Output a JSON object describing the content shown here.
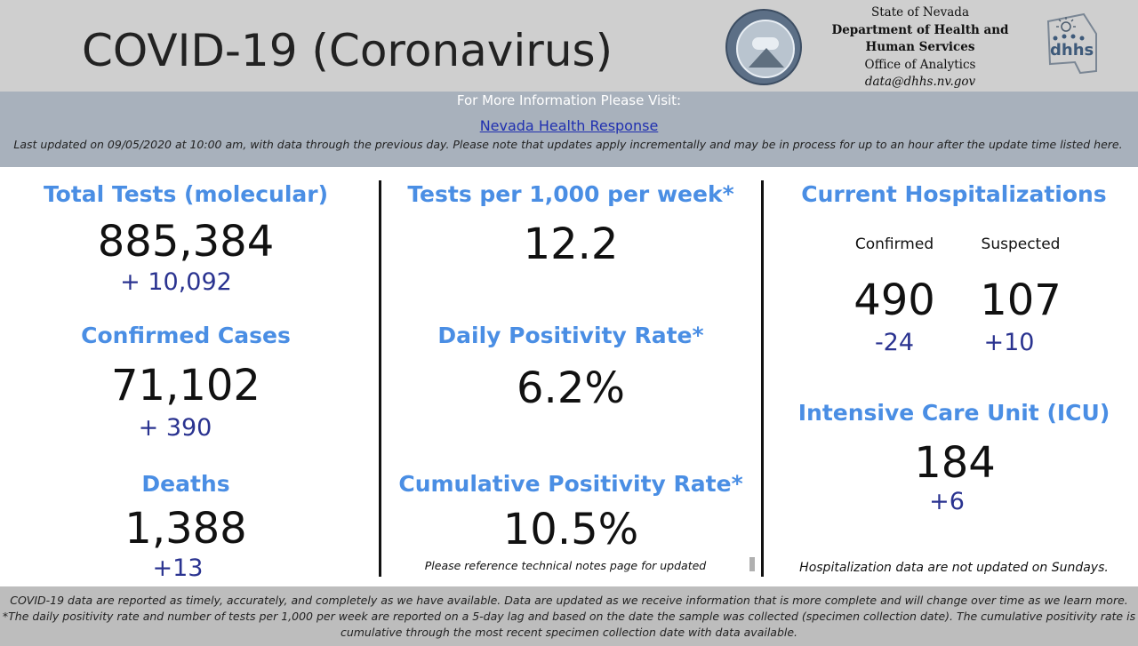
{
  "header": {
    "title": "COVID-19 (Coronavirus)",
    "agency": {
      "line1": "State of Nevada",
      "line2": "Department of Health and",
      "line3": "Human Services",
      "line4": "Office of Analytics",
      "email": "data@dhhs.nv.gov"
    },
    "seal_icon": "nevada-state-seal-icon",
    "logo_icon": "dhhs-logo-icon"
  },
  "info": {
    "visit_text": "For More Information Please Visit:",
    "link_text": "Nevada Health Response",
    "updated_note": "Last updated on 09/05/2020 at 10:00 am, with data through the previous day.  Please note that updates apply incrementally and may be in process for up to an hour after the update time listed here."
  },
  "left": {
    "tests": {
      "label": "Total Tests (molecular)",
      "value": "885,384",
      "change": "+ 10,092"
    },
    "cases": {
      "label": "Confirmed Cases",
      "value": "71,102",
      "change": "+ 390"
    },
    "deaths": {
      "label": "Deaths",
      "value": "1,388",
      "change": "+13"
    }
  },
  "middle": {
    "tests_per_1000": {
      "label": "Tests per 1,000 per week*",
      "value": "12.2"
    },
    "daily_positivity": {
      "label": "Daily Positivity Rate*",
      "value": "6.2%"
    },
    "cumulative_positivity": {
      "label": "Cumulative Positivity Rate*",
      "value": "10.5%",
      "note": "Please reference technical notes page for updated"
    }
  },
  "right": {
    "hospitalizations": {
      "label": "Current Hospitalizations",
      "confirmed": {
        "label": "Confirmed",
        "value": "490",
        "change": "-24"
      },
      "suspected": {
        "label": "Suspected",
        "value": "107",
        "change": "+10"
      }
    },
    "icu": {
      "label": "Intensive Care Unit (ICU)",
      "value": "184",
      "change": "+6"
    },
    "note": "Hospitalization data are not updated on Sundays."
  },
  "footer": {
    "line1": "COVID-19 data are reported as timely, accurately, and completely as we have available.  Data are updated as we receive information that is more complete and will change over time as we learn more.",
    "line2": "*The daily positivity rate and number of tests per 1,000 per week are reported on a 5-day lag and based on the date the sample was collected (specimen collection date).  The cumulative positivity rate is",
    "line3": "cumulative through the most recent specimen collection date with data available."
  },
  "colors": {
    "heading_blue": "#4a8ee4",
    "change_navy": "#2a3390",
    "header_gray": "#cfcfcf",
    "band_gray": "#a8b1bc",
    "footer_gray": "#bdbdbd",
    "link_blue": "#2030b0"
  }
}
